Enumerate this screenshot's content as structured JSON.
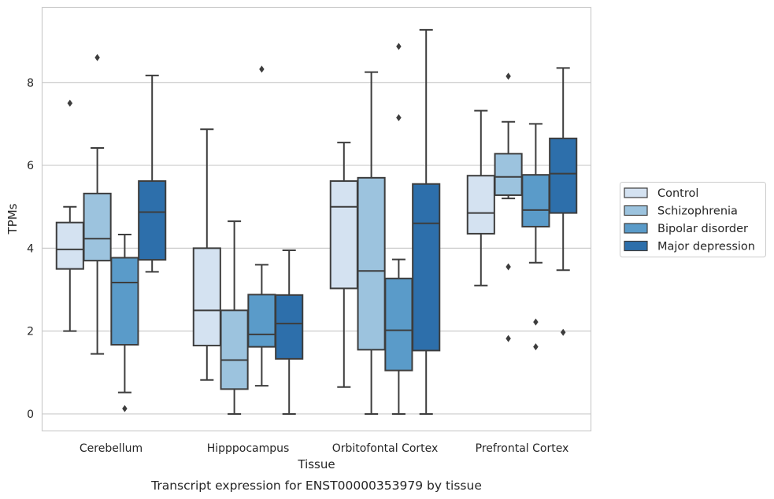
{
  "chart_data": {
    "type": "box",
    "title": "",
    "caption": "Transcript expression for ENST00000353979 by tissue",
    "xlabel": "Tissue",
    "ylabel": "TPMs",
    "ylim": [
      -0.4,
      9.8
    ],
    "yticks": [
      0,
      2,
      4,
      6,
      8
    ],
    "grid": "horizontal",
    "legend_position": "right",
    "categories": [
      "Cerebellum",
      "Hipppocampus",
      "Orbitofontal Cortex",
      "Prefrontal Cortex"
    ],
    "series": [
      {
        "name": "Control",
        "color": "#d4e2f1",
        "boxes": [
          {
            "whislo": 2.0,
            "q1": 3.5,
            "med": 3.97,
            "q3": 4.62,
            "whishi": 5.0,
            "fliers": [
              7.5
            ]
          },
          {
            "whislo": 0.82,
            "q1": 1.65,
            "med": 2.5,
            "q3": 4.0,
            "whishi": 6.87,
            "fliers": []
          },
          {
            "whislo": 0.65,
            "q1": 3.03,
            "med": 5.0,
            "q3": 5.62,
            "whishi": 6.55,
            "fliers": []
          },
          {
            "whislo": 3.1,
            "q1": 4.35,
            "med": 4.85,
            "q3": 5.75,
            "whishi": 7.32,
            "fliers": []
          }
        ]
      },
      {
        "name": "Schizophrenia",
        "color": "#9cc3de",
        "boxes": [
          {
            "whislo": 1.45,
            "q1": 3.7,
            "med": 4.23,
            "q3": 5.32,
            "whishi": 6.42,
            "fliers": [
              8.6
            ]
          },
          {
            "whislo": 0.0,
            "q1": 0.6,
            "med": 1.3,
            "q3": 2.5,
            "whishi": 4.65,
            "fliers": []
          },
          {
            "whislo": 0.0,
            "q1": 1.55,
            "med": 3.45,
            "q3": 5.7,
            "whishi": 8.25,
            "fliers": []
          },
          {
            "whislo": 5.2,
            "q1": 5.28,
            "med": 5.72,
            "q3": 6.28,
            "whishi": 7.05,
            "fliers": [
              8.15,
              3.55,
              1.82
            ]
          }
        ]
      },
      {
        "name": "Bipolar disorder",
        "color": "#5a9bc9",
        "boxes": [
          {
            "whislo": 0.52,
            "q1": 1.67,
            "med": 3.17,
            "q3": 3.77,
            "whishi": 4.33,
            "fliers": [
              0.13
            ]
          },
          {
            "whislo": 0.68,
            "q1": 1.62,
            "med": 1.92,
            "q3": 2.88,
            "whishi": 3.6,
            "fliers": [
              8.32
            ]
          },
          {
            "whislo": 0.0,
            "q1": 1.05,
            "med": 2.02,
            "q3": 3.27,
            "whishi": 3.73,
            "fliers": [
              8.87,
              7.15
            ]
          },
          {
            "whislo": 3.65,
            "q1": 4.52,
            "med": 4.92,
            "q3": 5.77,
            "whishi": 7.0,
            "fliers": [
              2.22,
              1.62
            ]
          }
        ]
      },
      {
        "name": "Major depression",
        "color": "#2d6fab",
        "boxes": [
          {
            "whislo": 3.43,
            "q1": 3.72,
            "med": 4.87,
            "q3": 5.62,
            "whishi": 8.17,
            "fliers": []
          },
          {
            "whislo": 0.0,
            "q1": 1.33,
            "med": 2.18,
            "q3": 2.87,
            "whishi": 3.95,
            "fliers": []
          },
          {
            "whislo": 0.0,
            "q1": 1.53,
            "med": 4.6,
            "q3": 5.55,
            "whishi": 9.27,
            "fliers": []
          },
          {
            "whislo": 3.47,
            "q1": 4.85,
            "med": 5.8,
            "q3": 6.65,
            "whishi": 8.35,
            "fliers": [
              1.97
            ]
          }
        ]
      }
    ]
  }
}
